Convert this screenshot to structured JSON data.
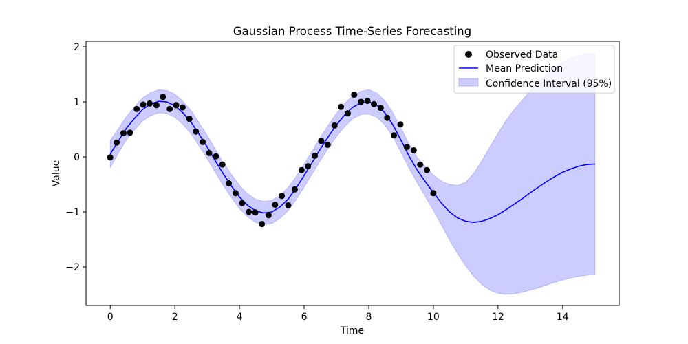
{
  "chart_data": {
    "type": "line",
    "title": "Gaussian Process Time-Series Forecasting",
    "xlabel": "Time",
    "ylabel": "Value",
    "xlim": [
      -0.75,
      15.75
    ],
    "ylim": [
      -2.7,
      2.1
    ],
    "xticks": [
      0,
      2,
      4,
      6,
      8,
      10,
      12,
      14
    ],
    "yticks": [
      -2,
      -1,
      0,
      1,
      2
    ],
    "grid": false,
    "legend_position": "top-right",
    "series": [
      {
        "name": "Observed Data",
        "kind": "scatter",
        "color": "#000000",
        "x": [
          0.0,
          0.2,
          0.41,
          0.61,
          0.82,
          1.02,
          1.22,
          1.43,
          1.63,
          1.84,
          2.04,
          2.24,
          2.45,
          2.65,
          2.86,
          3.06,
          3.27,
          3.47,
          3.67,
          3.88,
          4.08,
          4.29,
          4.49,
          4.69,
          4.9,
          5.1,
          5.31,
          5.51,
          5.71,
          5.92,
          6.12,
          6.33,
          6.53,
          6.73,
          6.94,
          7.14,
          7.35,
          7.55,
          7.76,
          7.96,
          8.16,
          8.37,
          8.57,
          8.78,
          8.98,
          9.18,
          9.39,
          9.59,
          9.8,
          10.0
        ],
        "y": [
          -0.01,
          0.26,
          0.43,
          0.44,
          0.87,
          0.95,
          0.97,
          0.94,
          1.09,
          0.87,
          0.94,
          0.9,
          0.69,
          0.46,
          0.27,
          0.07,
          0.01,
          -0.14,
          -0.48,
          -0.66,
          -0.84,
          -1.0,
          -1.01,
          -1.22,
          -1.06,
          -0.87,
          -0.71,
          -0.88,
          -0.59,
          -0.24,
          -0.17,
          0.02,
          0.29,
          0.22,
          0.57,
          0.91,
          0.79,
          1.13,
          1.0,
          1.02,
          0.96,
          0.89,
          0.71,
          0.39,
          0.59,
          0.18,
          0.12,
          -0.14,
          -0.24,
          -0.66
        ]
      },
      {
        "name": "Mean Prediction",
        "kind": "line",
        "color": "#0000ff",
        "x": [
          0,
          0.25,
          0.5,
          0.75,
          1,
          1.25,
          1.5,
          1.75,
          2,
          2.25,
          2.5,
          2.75,
          3,
          3.25,
          3.5,
          3.75,
          4,
          4.25,
          4.5,
          4.75,
          5,
          5.25,
          5.5,
          5.75,
          6,
          6.25,
          6.5,
          6.75,
          7,
          7.25,
          7.5,
          7.75,
          8,
          8.25,
          8.5,
          8.75,
          9,
          9.25,
          9.5,
          9.75,
          10,
          10.25,
          10.5,
          10.75,
          11,
          11.25,
          11.5,
          11.75,
          12,
          12.25,
          12.5,
          12.75,
          13,
          13.25,
          13.5,
          13.75,
          14,
          14.25,
          14.5,
          14.75,
          15
        ],
        "y": [
          0.05,
          0.29,
          0.52,
          0.7,
          0.86,
          0.96,
          1.01,
          1.0,
          0.93,
          0.8,
          0.63,
          0.41,
          0.18,
          -0.07,
          -0.31,
          -0.53,
          -0.73,
          -0.88,
          -0.98,
          -1.02,
          -1.0,
          -0.91,
          -0.77,
          -0.57,
          -0.34,
          -0.1,
          0.14,
          0.37,
          0.58,
          0.76,
          0.9,
          0.98,
          1.0,
          0.94,
          0.8,
          0.58,
          0.3,
          0.01,
          -0.24,
          -0.45,
          -0.65,
          -0.84,
          -1.0,
          -1.11,
          -1.17,
          -1.19,
          -1.17,
          -1.12,
          -1.05,
          -0.96,
          -0.86,
          -0.76,
          -0.65,
          -0.55,
          -0.45,
          -0.36,
          -0.28,
          -0.22,
          -0.17,
          -0.14,
          -0.13
        ]
      },
      {
        "name": "Confidence Interval (95%)",
        "kind": "band",
        "color": "#0000ff",
        "opacity": 0.2,
        "x": [
          0,
          0.25,
          0.5,
          0.75,
          1,
          1.25,
          1.5,
          1.75,
          2,
          2.25,
          2.5,
          2.75,
          3,
          3.25,
          3.5,
          3.75,
          4,
          4.25,
          4.5,
          4.75,
          5,
          5.25,
          5.5,
          5.75,
          6,
          6.25,
          6.5,
          6.75,
          7,
          7.25,
          7.5,
          7.75,
          8,
          8.25,
          8.5,
          8.75,
          9,
          9.25,
          9.5,
          9.75,
          10,
          10.25,
          10.5,
          10.75,
          11,
          11.25,
          11.5,
          11.75,
          12,
          12.25,
          12.5,
          12.75,
          13,
          13.25,
          13.5,
          13.75,
          14,
          14.25,
          14.5,
          14.75,
          15
        ],
        "lower": [
          -0.2,
          0.07,
          0.31,
          0.49,
          0.65,
          0.75,
          0.8,
          0.79,
          0.72,
          0.59,
          0.42,
          0.2,
          -0.03,
          -0.28,
          -0.52,
          -0.74,
          -0.94,
          -1.09,
          -1.19,
          -1.23,
          -1.21,
          -1.12,
          -0.98,
          -0.78,
          -0.55,
          -0.31,
          -0.07,
          0.16,
          0.37,
          0.55,
          0.69,
          0.77,
          0.78,
          0.72,
          0.58,
          0.36,
          0.08,
          -0.21,
          -0.47,
          -0.72,
          -0.97,
          -1.24,
          -1.51,
          -1.76,
          -1.98,
          -2.17,
          -2.32,
          -2.42,
          -2.48,
          -2.5,
          -2.49,
          -2.46,
          -2.42,
          -2.38,
          -2.33,
          -2.28,
          -2.24,
          -2.2,
          -2.17,
          -2.15,
          -2.14
        ],
        "upper": [
          0.3,
          0.51,
          0.73,
          0.91,
          1.07,
          1.17,
          1.22,
          1.21,
          1.14,
          1.01,
          0.84,
          0.62,
          0.39,
          0.14,
          -0.1,
          -0.32,
          -0.52,
          -0.67,
          -0.77,
          -0.81,
          -0.79,
          -0.7,
          -0.56,
          -0.36,
          -0.13,
          0.11,
          0.35,
          0.58,
          0.79,
          0.97,
          1.11,
          1.19,
          1.22,
          1.16,
          1.02,
          0.8,
          0.52,
          0.23,
          -0.01,
          -0.18,
          -0.33,
          -0.44,
          -0.5,
          -0.52,
          -0.46,
          -0.3,
          -0.07,
          0.18,
          0.43,
          0.66,
          0.86,
          1.03,
          1.2,
          1.35,
          1.5,
          1.62,
          1.72,
          1.79,
          1.84,
          1.87,
          1.88
        ]
      }
    ]
  }
}
